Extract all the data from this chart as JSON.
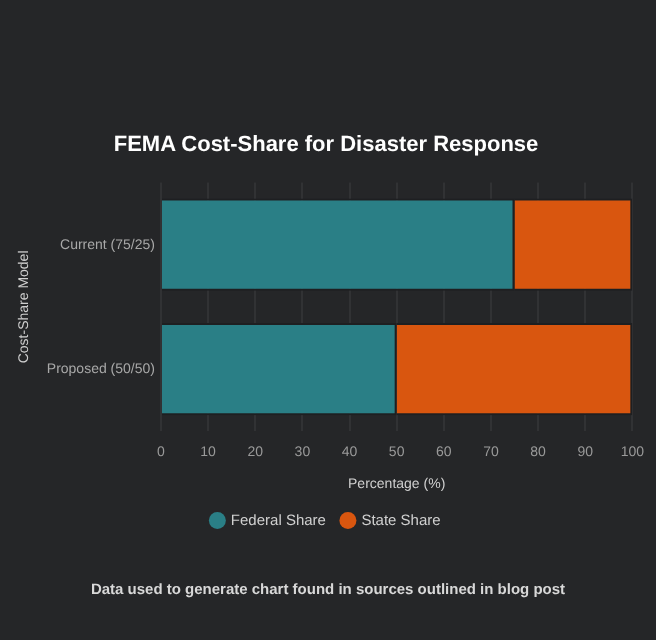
{
  "chart_data": {
    "type": "bar",
    "orientation": "horizontal",
    "stacked": true,
    "title": "FEMA Cost-Share for Disaster Response",
    "xlabel": "Percentage (%)",
    "ylabel": "Cost-Share Model",
    "categories": [
      "Current (75/25)",
      "Proposed (50/50)"
    ],
    "series": [
      {
        "name": "Federal Share",
        "color": "#2a7f86",
        "values": [
          75,
          50
        ]
      },
      {
        "name": "State Share",
        "color": "#d9560f",
        "values": [
          25,
          50
        ]
      }
    ],
    "xlim": [
      0,
      100
    ],
    "xticks": [
      0,
      10,
      20,
      30,
      40,
      50,
      60,
      70,
      80,
      90,
      100
    ],
    "grid": "x",
    "legend": "bottom",
    "annotations": [
      "Data used to generate chart found in sources outlined in blog post"
    ]
  }
}
